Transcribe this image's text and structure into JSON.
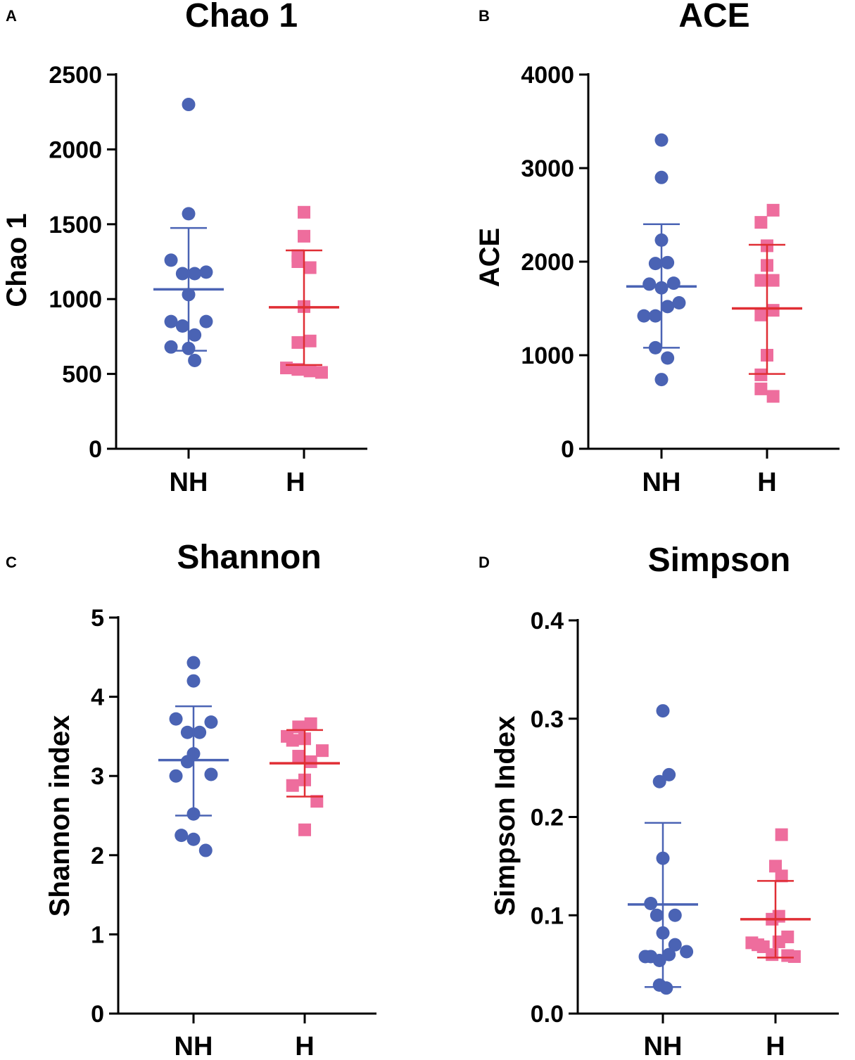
{
  "figure": {
    "style": {
      "nh_color": "#4a63b4",
      "h_point_color": "#ee6d9d",
      "h_line_color": "#e02e34",
      "axis_color": "#000000"
    }
  },
  "chart_data": [
    {
      "id": "A",
      "panel_label": "A",
      "type": "scatter",
      "title": "Chao 1",
      "ylabel": "Chao 1",
      "xlabel": "",
      "categories": [
        "NH",
        "H"
      ],
      "ylim": [
        0,
        2500
      ],
      "yticks": [
        0,
        500,
        1000,
        1500,
        2000,
        2500
      ],
      "tick_labels": [
        "0",
        "500",
        "1000",
        "1500",
        "2000",
        "2500"
      ],
      "series": [
        {
          "name": "NH",
          "marker": "circle",
          "points": [
            {
              "dx": 0,
              "y": 2300
            },
            {
              "dx": 0,
              "y": 1570
            },
            {
              "dx": -0.26,
              "y": 1260
            },
            {
              "dx": -0.09,
              "y": 1170
            },
            {
              "dx": 0.09,
              "y": 1170
            },
            {
              "dx": 0.26,
              "y": 1180
            },
            {
              "dx": 0,
              "y": 1030
            },
            {
              "dx": -0.26,
              "y": 850
            },
            {
              "dx": 0.26,
              "y": 850
            },
            {
              "dx": -0.09,
              "y": 820
            },
            {
              "dx": 0.09,
              "y": 760
            },
            {
              "dx": -0.26,
              "y": 680
            },
            {
              "dx": 0,
              "y": 670
            },
            {
              "dx": 0.09,
              "y": 590
            }
          ],
          "mean": 1065,
          "err_low": 655,
          "err_high": 1475
        },
        {
          "name": "H",
          "marker": "square",
          "points": [
            {
              "dx": 0,
              "y": 1580
            },
            {
              "dx": 0,
              "y": 1420
            },
            {
              "dx": -0.09,
              "y": 1290
            },
            {
              "dx": -0.09,
              "y": 1250
            },
            {
              "dx": 0.09,
              "y": 1210
            },
            {
              "dx": 0,
              "y": 950
            },
            {
              "dx": -0.09,
              "y": 710
            },
            {
              "dx": 0.09,
              "y": 720
            },
            {
              "dx": -0.26,
              "y": 540
            },
            {
              "dx": -0.09,
              "y": 530
            },
            {
              "dx": 0.09,
              "y": 520
            },
            {
              "dx": 0.26,
              "y": 510
            }
          ],
          "mean": 945,
          "err_low": 560,
          "err_high": 1325
        }
      ]
    },
    {
      "id": "B",
      "panel_label": "B",
      "type": "scatter",
      "title": "ACE",
      "ylabel": "ACE",
      "xlabel": "",
      "categories": [
        "NH",
        "H"
      ],
      "ylim": [
        0,
        4000
      ],
      "yticks": [
        0,
        1000,
        2000,
        3000,
        4000
      ],
      "tick_labels": [
        "0",
        "1000",
        "2000",
        "3000",
        "4000"
      ],
      "series": [
        {
          "name": "NH",
          "marker": "circle",
          "points": [
            {
              "dx": 0,
              "y": 3300
            },
            {
              "dx": 0,
              "y": 2900
            },
            {
              "dx": 0,
              "y": 2230
            },
            {
              "dx": -0.09,
              "y": 1980
            },
            {
              "dx": 0.09,
              "y": 1990
            },
            {
              "dx": -0.18,
              "y": 1760
            },
            {
              "dx": 0,
              "y": 1720
            },
            {
              "dx": 0.18,
              "y": 1770
            },
            {
              "dx": -0.26,
              "y": 1420
            },
            {
              "dx": -0.09,
              "y": 1420
            },
            {
              "dx": 0.09,
              "y": 1520
            },
            {
              "dx": 0.26,
              "y": 1560
            },
            {
              "dx": -0.09,
              "y": 1080
            },
            {
              "dx": 0.09,
              "y": 970
            },
            {
              "dx": 0,
              "y": 740
            }
          ],
          "mean": 1735,
          "err_low": 1080,
          "err_high": 2400
        },
        {
          "name": "H",
          "marker": "square",
          "points": [
            {
              "dx": 0.09,
              "y": 2550
            },
            {
              "dx": -0.09,
              "y": 2420
            },
            {
              "dx": 0,
              "y": 2170
            },
            {
              "dx": 0,
              "y": 1960
            },
            {
              "dx": -0.09,
              "y": 1800
            },
            {
              "dx": 0.09,
              "y": 1800
            },
            {
              "dx": 0.09,
              "y": 1480
            },
            {
              "dx": -0.09,
              "y": 1430
            },
            {
              "dx": 0,
              "y": 1000
            },
            {
              "dx": -0.09,
              "y": 790
            },
            {
              "dx": -0.09,
              "y": 640
            },
            {
              "dx": 0.09,
              "y": 560
            }
          ],
          "mean": 1500,
          "err_low": 800,
          "err_high": 2180
        }
      ]
    },
    {
      "id": "C",
      "panel_label": "C",
      "type": "scatter",
      "title": "Shannon",
      "ylabel": "Shannon index",
      "xlabel": "",
      "categories": [
        "NH",
        "H"
      ],
      "ylim": [
        0,
        5
      ],
      "yticks": [
        0,
        1,
        2,
        3,
        4,
        5
      ],
      "tick_labels": [
        "0",
        "1",
        "2",
        "3",
        "4",
        "5"
      ],
      "series": [
        {
          "name": "NH",
          "marker": "circle",
          "points": [
            {
              "dx": 0,
              "y": 4.43
            },
            {
              "dx": 0,
              "y": 4.2
            },
            {
              "dx": -0.26,
              "y": 3.72
            },
            {
              "dx": 0.26,
              "y": 3.68
            },
            {
              "dx": -0.09,
              "y": 3.55
            },
            {
              "dx": 0.09,
              "y": 3.55
            },
            {
              "dx": 0,
              "y": 3.28
            },
            {
              "dx": -0.09,
              "y": 3.18
            },
            {
              "dx": -0.26,
              "y": 3.0
            },
            {
              "dx": 0.26,
              "y": 3.02
            },
            {
              "dx": 0,
              "y": 2.52
            },
            {
              "dx": -0.18,
              "y": 2.25
            },
            {
              "dx": 0,
              "y": 2.2
            },
            {
              "dx": 0.18,
              "y": 2.06
            }
          ],
          "mean": 3.2,
          "err_low": 2.5,
          "err_high": 3.88
        },
        {
          "name": "H",
          "marker": "square",
          "points": [
            {
              "dx": -0.09,
              "y": 3.62
            },
            {
              "dx": 0.09,
              "y": 3.66
            },
            {
              "dx": -0.26,
              "y": 3.5
            },
            {
              "dx": -0.18,
              "y": 3.45
            },
            {
              "dx": 0,
              "y": 3.47
            },
            {
              "dx": 0.26,
              "y": 3.32
            },
            {
              "dx": -0.09,
              "y": 3.25
            },
            {
              "dx": 0.09,
              "y": 3.18
            },
            {
              "dx": -0.18,
              "y": 2.88
            },
            {
              "dx": 0,
              "y": 2.95
            },
            {
              "dx": 0.18,
              "y": 2.68
            },
            {
              "dx": 0,
              "y": 2.32
            }
          ],
          "mean": 3.16,
          "err_low": 2.74,
          "err_high": 3.58
        }
      ]
    },
    {
      "id": "D",
      "panel_label": "D",
      "type": "scatter",
      "title": "Simpson",
      "ylabel": "Simpson Index",
      "xlabel": "",
      "categories": [
        "NH",
        "H"
      ],
      "ylim": [
        0,
        0.4
      ],
      "yticks": [
        0,
        0.1,
        0.2,
        0.3,
        0.4
      ],
      "tick_labels": [
        "0.0",
        "0.1",
        "0.2",
        "0.3",
        "0.4"
      ],
      "series": [
        {
          "name": "NH",
          "marker": "circle",
          "points": [
            {
              "dx": 0,
              "y": 0.308
            },
            {
              "dx": 0.09,
              "y": 0.243
            },
            {
              "dx": -0.05,
              "y": 0.236
            },
            {
              "dx": 0,
              "y": 0.158
            },
            {
              "dx": -0.18,
              "y": 0.112
            },
            {
              "dx": 0.18,
              "y": 0.1
            },
            {
              "dx": -0.09,
              "y": 0.1
            },
            {
              "dx": 0,
              "y": 0.082
            },
            {
              "dx": 0.18,
              "y": 0.07
            },
            {
              "dx": -0.26,
              "y": 0.058
            },
            {
              "dx": -0.18,
              "y": 0.058
            },
            {
              "dx": -0.05,
              "y": 0.054
            },
            {
              "dx": 0.09,
              "y": 0.06
            },
            {
              "dx": 0.35,
              "y": 0.063
            },
            {
              "dx": -0.05,
              "y": 0.029
            },
            {
              "dx": 0.05,
              "y": 0.026
            }
          ],
          "mean": 0.111,
          "err_low": 0.027,
          "err_high": 0.194
        },
        {
          "name": "H",
          "marker": "square",
          "points": [
            {
              "dx": 0.09,
              "y": 0.182
            },
            {
              "dx": 0,
              "y": 0.15
            },
            {
              "dx": 0.09,
              "y": 0.14
            },
            {
              "dx": 0.05,
              "y": 0.099
            },
            {
              "dx": -0.05,
              "y": 0.096
            },
            {
              "dx": -0.35,
              "y": 0.072
            },
            {
              "dx": -0.26,
              "y": 0.07
            },
            {
              "dx": -0.18,
              "y": 0.068
            },
            {
              "dx": 0.18,
              "y": 0.078
            },
            {
              "dx": 0.05,
              "y": 0.073
            },
            {
              "dx": -0.05,
              "y": 0.06
            },
            {
              "dx": 0.18,
              "y": 0.059
            },
            {
              "dx": 0.28,
              "y": 0.058
            }
          ],
          "mean": 0.096,
          "err_low": 0.057,
          "err_high": 0.135
        }
      ]
    }
  ]
}
